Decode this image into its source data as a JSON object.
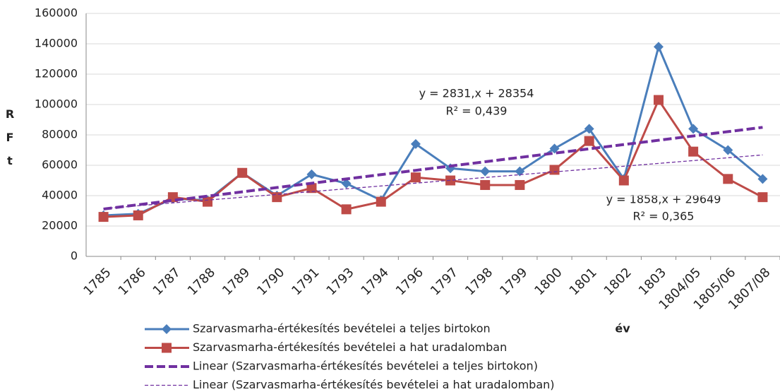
{
  "chart_data": {
    "type": "line",
    "categories": [
      "1785",
      "1786",
      "1787",
      "1788",
      "1789",
      "1790",
      "1791",
      "1793",
      "1794",
      "1796",
      "1797",
      "1798",
      "1799",
      "1800",
      "1801",
      "1802",
      "1803",
      "1804/05",
      "1805/06",
      "1807/08"
    ],
    "series": [
      {
        "name": "Szarvasmarha-értékesítés bevételei a teljes birtokon",
        "color": "#4a7ebb",
        "marker": "diamond",
        "line_style": "solid",
        "values": [
          27000,
          28000,
          38000,
          37000,
          55000,
          40000,
          54000,
          48000,
          37000,
          74000,
          58000,
          56000,
          56000,
          71000,
          84000,
          51000,
          138000,
          84000,
          70000,
          51000
        ]
      },
      {
        "name": "Szarvasmarha-értékesítés bevételei a hat uradalomban",
        "color": "#be4b48",
        "marker": "square",
        "line_style": "solid",
        "values": [
          26000,
          27000,
          39000,
          36000,
          55000,
          39000,
          45000,
          31000,
          36000,
          52000,
          50000,
          47000,
          47000,
          57000,
          76000,
          50000,
          103000,
          69000,
          51000,
          39000
        ]
      },
      {
        "name": "Linear (Szarvasmarha-értékesítés bevételei a teljes birtokon)",
        "color": "#7030a0",
        "marker": "none",
        "line_style": "dashed",
        "values": [
          31185,
          34016,
          36847,
          39678,
          42509,
          45340,
          48171,
          51002,
          53833,
          56664,
          59495,
          62326,
          65157,
          67988,
          70819,
          73650,
          76481,
          79312,
          82143,
          84974
        ]
      },
      {
        "name": "Linear (Szarvasmarha-értékesítés bevételei a hat uradalomban)",
        "color": "#7030a0",
        "marker": "none",
        "line_style": "dashed-thin",
        "values": [
          31507,
          33365,
          35223,
          37081,
          38939,
          40797,
          42655,
          44513,
          46371,
          48229,
          50087,
          51945,
          53803,
          55661,
          57519,
          59377,
          61235,
          63093,
          64951,
          66809
        ]
      }
    ],
    "ylim": [
      0,
      160000
    ],
    "yticks": [
      0,
      20000,
      40000,
      60000,
      80000,
      100000,
      120000,
      140000,
      160000
    ],
    "y_label": "RFt",
    "x_label": "év",
    "grid": true,
    "annotations": [
      "y = 2831,x + 28354",
      "R² = 0,439",
      "y = 1858,x + 29649",
      "R² = 0,365"
    ]
  }
}
